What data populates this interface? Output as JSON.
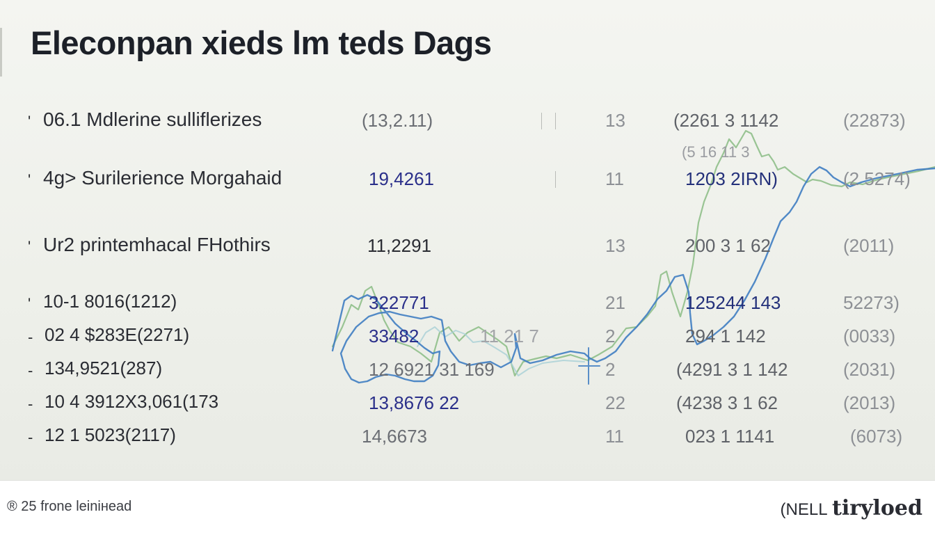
{
  "title": "Eleconpan xieds lm teds Dags",
  "rows": [
    {
      "bullet": "'",
      "label": "06.1 Mdlerine sulliflerizes",
      "c1": "(13,2.11)",
      "c2": "13",
      "c3": "(2261 3 1142",
      "c4": "(22873)"
    },
    {
      "bullet": "'",
      "label": "4g> Surilerience Morgahaid",
      "c1": "19,4261",
      "c2": "11",
      "c3": "1203 2IRN)",
      "c4": "(2 5274)"
    },
    {
      "bullet": "'",
      "label": "Ur2 printemhacal FHothirs",
      "c1": "11,2291",
      "c2": "13",
      "c3": "200 3 1 62",
      "c4": "(2011)"
    },
    {
      "bullet": "'",
      "label": "10-1 8016(1212)",
      "c1": "322771",
      "c2": "21",
      "c3": "125244 143",
      "c4": "52273)"
    },
    {
      "bullet": "-",
      "label": "02 4 $283E(2271)",
      "c1": "33482",
      "c2": "2",
      "c3": "294 1 142",
      "c4": "(0033)"
    },
    {
      "bullet": "-",
      "label": "134,9521(287)",
      "c1": "12 6921 31 169",
      "c2": "2",
      "c3": "(4291 3 1 142",
      "c4": "(2031)"
    },
    {
      "bullet": "-",
      "label": "10 4 3912X3,061(173",
      "c1": "13,8676 22",
      "c2": "22",
      "c3": "(4238 3 1 62",
      "c4": "(2013)"
    },
    {
      "bullet": "-",
      "label": "12 1 5023(2117)",
      "c1": "14,6673",
      "c2": "11",
      "c3": "023 1 1141",
      "c4": "(6073)"
    }
  ],
  "extra_labels": {
    "r1_overlay": "(5 16 11 3",
    "r4_overlay": "11 21 7"
  },
  "footer": {
    "left": "® 25 frone leinінead",
    "right_small": "(NELL",
    "right_brand": "tiryloed"
  },
  "colors": {
    "background": "#eef0ea",
    "chart_blue": "#3f7dc2",
    "chart_green": "#8fbf8a",
    "chart_light": "#a8cfd6",
    "text_blue": "#2a2f8a"
  }
}
